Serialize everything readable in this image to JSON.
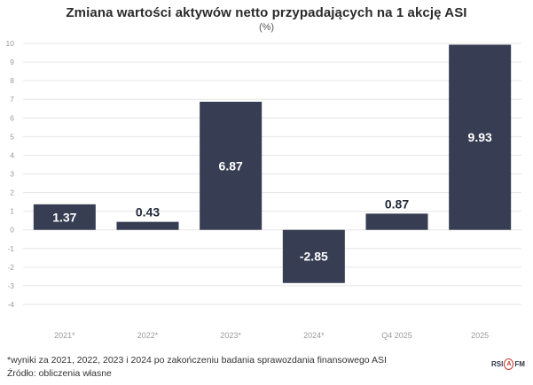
{
  "title": "Zmiana wartości aktywów netto przypadających na 1 akcję ASI",
  "subtitle": "(%)",
  "footnotes": {
    "line1": "*wyniki za 2021, 2022, 2023 i 2024 po zakończeniu badania sprawozdania finansowego ASI",
    "line2": "Źródło: obliczenia własne"
  },
  "logo": {
    "text_left": "RSI",
    "text_right": "FM",
    "circle_text": "A"
  },
  "colors": {
    "bar": "#373d52",
    "label_inside": "#ffffff",
    "label_outside": "#1f2937",
    "grid": "#e6e6e6",
    "axis_text": "#9a9a9a"
  },
  "chart_data": {
    "type": "bar",
    "title": "Zmiana wartości aktywów netto przypadających na 1 akcję ASI",
    "subtitle": "(%)",
    "categories": [
      "2021*",
      "2022*",
      "2023*",
      "2024*",
      "Q4 2025",
      "2025"
    ],
    "values": [
      1.37,
      0.43,
      6.87,
      -2.85,
      0.87,
      9.93
    ],
    "labels": [
      "1.37",
      "0.43",
      "6.87",
      "-2.85",
      "0.87",
      "9.93"
    ],
    "ylim": [
      -4,
      10
    ],
    "yticks": [
      -4,
      -3,
      -2,
      -1,
      0,
      1,
      2,
      3,
      4,
      5,
      6,
      7,
      8,
      9,
      10
    ],
    "grid": "horizontal",
    "legend": "none"
  }
}
